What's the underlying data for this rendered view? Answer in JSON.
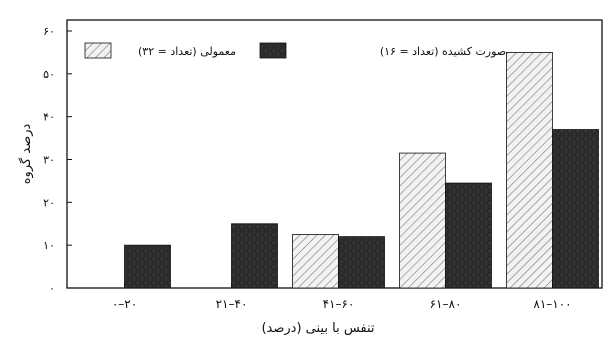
{
  "chart_data": {
    "type": "bar",
    "title": "",
    "xlabel": "تنفس با بینی (درصد)",
    "ylabel": "درصد گروه",
    "categories": [
      "۰–۲۰",
      "۲۱–۴۰",
      "۴۱–۶۰",
      "۶۱–۸۰",
      "۸۱–۱۰۰"
    ],
    "series": [
      {
        "name": "صورت کشیده (تعداد = ۱۶)",
        "pattern": "hatched",
        "values": [
          0,
          0,
          12.5,
          31.5,
          55
        ]
      },
      {
        "name": "معمولی (تعداد = ۳۲)",
        "pattern": "dark-speckled",
        "values": [
          10,
          15,
          12,
          24.5,
          37
        ]
      }
    ],
    "ylim": [
      0,
      60
    ],
    "yticks": [
      0,
      10,
      20,
      30,
      40,
      50,
      60
    ],
    "ytick_labels": [
      "۰",
      "۱۰",
      "۲۰",
      "۳۰",
      "۴۰",
      "۵۰",
      "۶۰"
    ],
    "legend_position": "top",
    "grid": false,
    "colors": {
      "hatched_fill": "#f2f2f2",
      "hatch_line": "#777777",
      "dark_fill": "#2b2b2b",
      "axis": "#111111"
    }
  }
}
